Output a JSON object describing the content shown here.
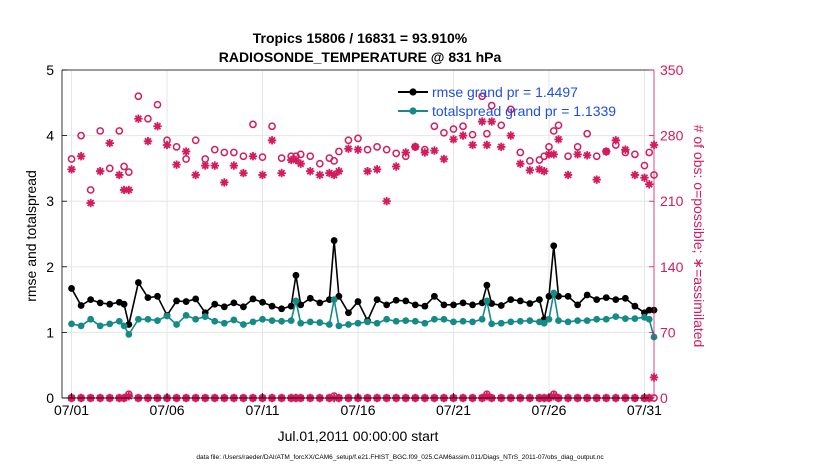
{
  "chart_data": {
    "type": "line",
    "title": "Tropics 15806 / 16831 = 93.910%",
    "subtitle": "RADIOSONDE_TEMPERATURE @ 831 hPa",
    "xlabel": "Jul.01,2011 00:00:00 start",
    "ylabel": "rmse and totalspread",
    "y2label": "# of obs: o=possible; ∗=assimilated",
    "footer": "data file: /Users/raeder/DAI/ATM_forcXX/CAM6_setup/f.e21.FHIST_BGC.f09_025.CAM6assim.011/Diags_NTrS_2011-07/obs_diag_output.nc",
    "xlim": [
      0.5,
      31.5
    ],
    "ylim": [
      0,
      5
    ],
    "y2lim": [
      0,
      350
    ],
    "xticks": [
      1,
      6,
      11,
      16,
      21,
      26,
      31
    ],
    "xtick_labels": [
      "07/01",
      "07/06",
      "07/11",
      "07/16",
      "07/21",
      "07/26",
      "07/31"
    ],
    "yticks": [
      0,
      1,
      2,
      3,
      4,
      5
    ],
    "ytick_labels": [
      "0",
      "1",
      "2",
      "3",
      "4",
      "5"
    ],
    "y2ticks": [
      0,
      70,
      140,
      210,
      280,
      350
    ],
    "y2tick_labels": [
      "0",
      "70",
      "140",
      "210",
      "280",
      "350"
    ],
    "grid": true,
    "legend_position": "top-right",
    "x": [
      1.0,
      1.5,
      2.0,
      2.5,
      3.0,
      3.5,
      3.75,
      4.0,
      4.5,
      5.0,
      5.5,
      6.0,
      6.5,
      7.0,
      7.5,
      8.0,
      8.5,
      9.0,
      9.5,
      10.0,
      10.5,
      11.0,
      11.5,
      12.0,
      12.5,
      12.75,
      13.0,
      13.5,
      14.0,
      14.5,
      14.75,
      15.0,
      15.5,
      16.0,
      16.5,
      17.0,
      17.5,
      18.0,
      18.5,
      19.0,
      19.5,
      20.0,
      20.5,
      21.0,
      21.5,
      22.0,
      22.5,
      22.75,
      23.0,
      23.5,
      24.0,
      24.5,
      25.0,
      25.5,
      25.75,
      26.0,
      26.25,
      26.5,
      27.0,
      27.5,
      28.0,
      28.5,
      29.0,
      29.5,
      30.0,
      30.5,
      31.0,
      31.25,
      31.5
    ],
    "series": [
      {
        "name": "rmse grand pr = 1.4497",
        "axis": "left",
        "color": "#000000",
        "marker": "circle",
        "values": [
          1.67,
          1.41,
          1.5,
          1.45,
          1.43,
          1.46,
          1.43,
          1.12,
          1.76,
          1.53,
          1.55,
          1.26,
          1.48,
          1.47,
          1.51,
          1.3,
          1.43,
          1.39,
          1.45,
          1.39,
          1.51,
          1.46,
          1.4,
          1.36,
          1.4,
          1.87,
          1.42,
          1.52,
          1.45,
          1.5,
          2.4,
          1.55,
          1.3,
          1.47,
          1.18,
          1.5,
          1.42,
          1.49,
          1.48,
          1.42,
          1.4,
          1.55,
          1.42,
          1.42,
          1.45,
          1.42,
          1.45,
          1.72,
          1.44,
          1.41,
          1.5,
          1.48,
          1.44,
          1.5,
          1.2,
          1.55,
          2.32,
          1.55,
          1.55,
          1.42,
          1.57,
          1.5,
          1.53,
          1.5,
          1.52,
          1.4,
          1.3,
          1.34,
          1.34
        ]
      },
      {
        "name": "totalspread grand pr = 1.1339",
        "axis": "left",
        "color": "#148b86",
        "marker": "circle",
        "values": [
          1.13,
          1.1,
          1.2,
          1.1,
          1.13,
          1.17,
          1.1,
          0.97,
          1.2,
          1.2,
          1.18,
          1.25,
          1.12,
          1.26,
          1.2,
          1.24,
          1.17,
          1.14,
          1.19,
          1.12,
          1.16,
          1.2,
          1.18,
          1.17,
          1.18,
          1.48,
          1.14,
          1.16,
          1.15,
          1.12,
          1.5,
          1.1,
          1.12,
          1.14,
          1.16,
          1.14,
          1.2,
          1.17,
          1.18,
          1.17,
          1.14,
          1.2,
          1.2,
          1.16,
          1.17,
          1.16,
          1.2,
          1.48,
          1.13,
          1.14,
          1.16,
          1.17,
          1.18,
          1.16,
          1.14,
          1.2,
          1.6,
          1.18,
          1.16,
          1.18,
          1.18,
          1.2,
          1.2,
          1.24,
          1.21,
          1.21,
          1.23,
          1.2,
          0.93
        ]
      },
      {
        "name": "possible",
        "axis": "right",
        "color": "#d31b5e",
        "marker": "open-circle",
        "values": [
          255,
          280,
          222,
          285,
          245,
          285,
          247,
          241,
          322,
          298,
          313,
          275,
          268,
          255,
          275,
          255,
          265,
          262,
          262,
          258,
          292,
          257,
          290,
          256,
          258,
          258,
          260,
          258,
          250,
          256,
          253,
          263,
          275,
          277,
          265,
          268,
          265,
          261,
          258,
          268,
          265,
          290,
          283,
          287,
          290,
          281,
          322,
          282,
          312,
          291,
          308,
          262,
          253,
          254,
          258,
          268,
          285,
          291,
          258,
          268,
          282,
          258,
          263,
          270,
          262,
          260,
          248,
          262,
          238
        ]
      },
      {
        "name": "assimilated",
        "axis": "right",
        "color": "#d31b5e",
        "marker": "asterisk",
        "values": [
          244,
          258,
          208,
          242,
          272,
          238,
          222,
          222,
          298,
          274,
          290,
          270,
          249,
          263,
          238,
          248,
          248,
          230,
          248,
          240,
          258,
          238,
          275,
          240,
          254,
          254,
          250,
          242,
          238,
          240,
          238,
          242,
          266,
          265,
          242,
          244,
          210,
          247,
          262,
          268,
          262,
          264,
          255,
          276,
          280,
          270,
          295,
          270,
          295,
          268,
          280,
          250,
          243,
          244,
          242,
          260,
          260,
          276,
          238,
          260,
          259,
          233,
          263,
          275,
          265,
          238,
          235,
          228,
          270
        ]
      },
      {
        "name": "possible-zero",
        "axis": "right",
        "color": "#d31b5e",
        "marker": "open-circle",
        "values": [
          0,
          0,
          0,
          0,
          0,
          0,
          0,
          4,
          0,
          0,
          0,
          0,
          0,
          0,
          0,
          0,
          0,
          0,
          0,
          0,
          0,
          0,
          0,
          0,
          0,
          0,
          0,
          0,
          0,
          0,
          2,
          0,
          0,
          0,
          0,
          0,
          0,
          0,
          0,
          0,
          0,
          0,
          0,
          0,
          0,
          0,
          0,
          4,
          0,
          0,
          0,
          0,
          0,
          0,
          0,
          0,
          4,
          0,
          0,
          0,
          0,
          0,
          0,
          0,
          0,
          0,
          0,
          0,
          0
        ]
      },
      {
        "name": "assimilated-zero",
        "axis": "right",
        "color": "#d31b5e",
        "marker": "asterisk",
        "values": [
          0,
          0,
          0,
          0,
          0,
          0,
          0,
          2,
          0,
          0,
          0,
          0,
          0,
          0,
          0,
          0,
          0,
          0,
          0,
          0,
          0,
          0,
          0,
          0,
          0,
          0,
          0,
          0,
          0,
          0,
          0,
          0,
          0,
          0,
          0,
          0,
          0,
          0,
          0,
          0,
          0,
          0,
          0,
          0,
          0,
          0,
          0,
          2,
          0,
          0,
          0,
          0,
          0,
          0,
          0,
          0,
          2,
          0,
          0,
          0,
          0,
          0,
          0,
          0,
          0,
          0,
          0,
          0,
          22
        ]
      }
    ],
    "legend": [
      {
        "label": "rmse grand pr = 1.4497",
        "color": "#000000"
      },
      {
        "label": "totalspread grand pr = 1.1339",
        "color": "#148b86"
      }
    ],
    "colors": {
      "left_axis": "#000000",
      "right_axis": "#d31b5e",
      "legend_text": "#1f4fe0",
      "grid": "#e6e6e6"
    }
  }
}
